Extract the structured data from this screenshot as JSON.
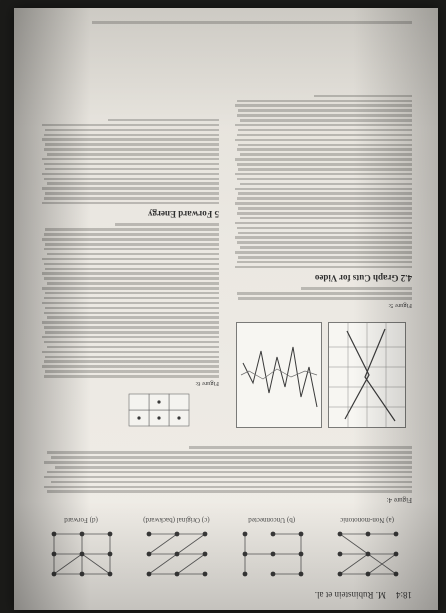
{
  "running_head": {
    "page_number": "18:4",
    "author": "M. Rubinstein et al."
  },
  "figure_panels": [
    {
      "label": "(a) Non-monotonic"
    },
    {
      "label": "(b) Unconnected"
    },
    {
      "label": "(c) Original (backward)"
    },
    {
      "label": "(d) Forward"
    }
  ],
  "top_caption": {
    "lead": "Figure 4:"
  },
  "left_column": {
    "figure_caption_lead": "Figure 5:",
    "section_heading": "4.2 Graph Cuts for Video"
  },
  "right_column": {
    "figure_caption_lead": "Figure 6:",
    "section_heading": "5 Forward Energy"
  },
  "footer": {}
}
